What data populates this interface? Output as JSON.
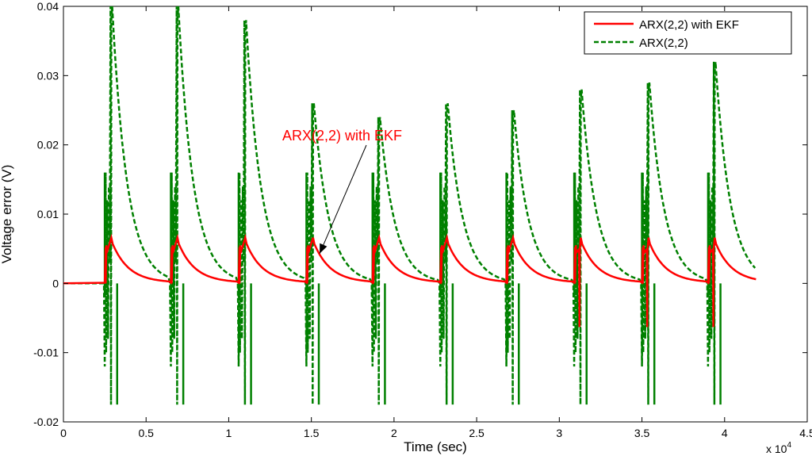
{
  "chart_data": {
    "type": "line",
    "title": "",
    "xlabel": "Time (sec)",
    "ylabel": "Voltage error (V)",
    "x_exponent_label": "x 10",
    "x_exponent_power": "4",
    "xlim": [
      0,
      4.5
    ],
    "ylim": [
      -0.02,
      0.04
    ],
    "xticks": [
      0,
      0.5,
      1,
      1.5,
      2,
      2.5,
      3,
      3.5,
      4,
      4.5
    ],
    "xtick_labels": [
      "0",
      "0.5",
      "1",
      "1.5",
      "2",
      "2.5",
      "3",
      "3.5",
      "4",
      "4.5"
    ],
    "yticks": [
      -0.02,
      -0.01,
      0,
      0.01,
      0.02,
      0.03,
      0.04
    ],
    "ytick_labels": [
      "-0.02",
      "-0.01",
      "0",
      "0.01",
      "0.02",
      "0.03",
      "0.04"
    ],
    "grid": false,
    "legend_position": "top-right",
    "event_times": [
      0.25,
      0.65,
      1.06,
      1.47,
      1.87,
      2.28,
      2.68,
      3.09,
      3.5,
      3.9
    ],
    "series": [
      {
        "name": "ARX(2,2) with EKF",
        "color": "#ff0000",
        "style": "solid",
        "pulse_peak": 0.0055,
        "spike_min": -0.009,
        "spike_max": 0.0145,
        "decay_end_time": 4.2
      },
      {
        "name": "ARX(2,2)",
        "color": "#008000",
        "style": "dashed",
        "pulse_peaks": [
          0.04,
          0.04,
          0.038,
          0.026,
          0.024,
          0.026,
          0.025,
          0.028,
          0.029,
          0.032
        ],
        "spike_min": -0.0175,
        "spike_max": 0.016,
        "decay_end_time": 4.2
      }
    ],
    "annotations": [
      {
        "text": "ARX(2,2) with EKF",
        "color": "#ff0000",
        "arrow_to_x": 1.55,
        "arrow_to_y": 0.0043
      }
    ]
  }
}
